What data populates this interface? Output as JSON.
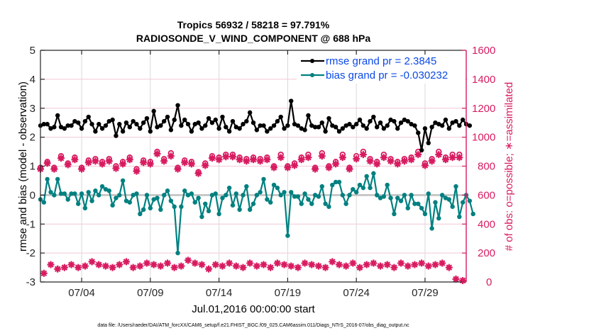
{
  "chart_data": {
    "type": "line",
    "title": "Tropics 56932 / 58218 = 97.791%",
    "subtitle": "RADIOSONDE_V_WIND_COMPONENT @ 688 hPa",
    "xlabel": "Jul.01,2016 00:00:00 start",
    "ylabel": "rmse and bias (model - observation)",
    "y2label": "# of obs: o=possible; ∗=assimilated",
    "footnote": "data file: /Users/raeder/DAI/ATM_forcXX/CAM6_setup/f.e21.FHIST_BGC.f09_025.CAM6assim.011/Diags_NTrS_2016-07/obs_diag_output.nc",
    "ylim": [
      -3,
      5
    ],
    "y2lim": [
      0,
      1600
    ],
    "xlim_days": [
      1,
      32
    ],
    "yticks": [
      "5",
      "4",
      "3",
      "2",
      "1",
      "0",
      "-1",
      "-2",
      "-3"
    ],
    "y2ticks": [
      "1600",
      "1400",
      "1200",
      "1000",
      "800",
      "600",
      "400",
      "200",
      "0"
    ],
    "xticks": [
      {
        "label": "07/04",
        "day": 4
      },
      {
        "label": "07/09",
        "day": 9
      },
      {
        "label": "07/14",
        "day": 14
      },
      {
        "label": "07/19",
        "day": 19
      },
      {
        "label": "07/24",
        "day": 24
      },
      {
        "label": "07/29",
        "day": 29
      }
    ],
    "grid": true,
    "zero_line": true,
    "legend_position": "top-right",
    "legend": [
      {
        "label": "rmse grand pr = 2.3845",
        "color": "#000000"
      },
      {
        "label": "bias grand pr = -0.030232",
        "color": "#008080"
      }
    ],
    "colors": {
      "rmse": "#000000",
      "bias": "#008080",
      "obs": "#d81b60",
      "legend_text": "#0b49e6",
      "zero_line": "#bfbfbf",
      "grid": "#f3c8d8"
    },
    "x_days_start": 1.0,
    "x_step_days": 0.25,
    "series": [
      {
        "name": "rmse",
        "axis": "left",
        "values": [
          2.4,
          2.45,
          2.45,
          2.3,
          2.35,
          2.75,
          2.35,
          2.3,
          2.4,
          2.4,
          2.55,
          2.5,
          2.3,
          2.55,
          2.7,
          2.45,
          2.2,
          2.45,
          2.3,
          2.4,
          2.55,
          2.6,
          2.05,
          2.45,
          2.2,
          2.5,
          2.35,
          2.55,
          2.45,
          2.3,
          2.5,
          2.65,
          2.2,
          2.9,
          2.35,
          2.4,
          2.55,
          2.7,
          2.25,
          2.6,
          3.1,
          2.4,
          2.6,
          2.45,
          2.2,
          2.45,
          2.5,
          2.3,
          2.4,
          2.65,
          2.5,
          2.6,
          2.3,
          2.7,
          2.35,
          2.2,
          2.55,
          2.35,
          2.3,
          2.45,
          2.55,
          2.85,
          2.5,
          2.25,
          2.4,
          2.4,
          2.2,
          2.3,
          2.4,
          2.55,
          2.7,
          2.3,
          2.4,
          3.25,
          2.45,
          2.4,
          2.3,
          2.25,
          2.75,
          2.4,
          2.35,
          2.35,
          2.5,
          2.2,
          2.65,
          2.4,
          2.35,
          2.2,
          2.3,
          2.4,
          2.45,
          2.35,
          2.45,
          2.6,
          2.4,
          2.3,
          2.55,
          2.7,
          2.35,
          2.5,
          2.3,
          2.4,
          2.6,
          2.55,
          2.3,
          2.5,
          2.6,
          2.55,
          2.45,
          2.4,
          2.15,
          1.55,
          2.3,
          1.8,
          2.35,
          2.5,
          2.45,
          2.4,
          2.6,
          2.3,
          2.5,
          2.55,
          2.4,
          2.6,
          2.45,
          2.4
        ]
      },
      {
        "name": "bias",
        "axis": "left",
        "values": [
          -0.15,
          -0.25,
          0.55,
          0.1,
          0.0,
          0.55,
          0.05,
          0.05,
          -0.15,
          0.05,
          0.05,
          -0.3,
          0.05,
          -0.45,
          0.1,
          -0.2,
          0.15,
          0.0,
          0.3,
          0.2,
          0.15,
          -0.35,
          -0.1,
          0.0,
          0.5,
          -0.2,
          -0.25,
          0.0,
          0.05,
          -0.65,
          -0.5,
          0.0,
          -0.45,
          -0.15,
          -0.1,
          -0.5,
          0.0,
          0.15,
          -0.2,
          -0.4,
          -2.0,
          -0.4,
          0.15,
          0.0,
          0.05,
          -0.25,
          -0.1,
          -0.75,
          -0.3,
          -0.55,
          0.0,
          0.05,
          -0.65,
          -0.1,
          0.0,
          0.25,
          -0.35,
          0.05,
          -0.5,
          0.0,
          0.3,
          -0.5,
          -0.3,
          0.0,
          0.1,
          0.55,
          -0.15,
          -0.25,
          0.35,
          0.25,
          0.0,
          0.1,
          -1.4,
          0.1,
          -0.05,
          -0.05,
          -0.3,
          0.05,
          -0.15,
          -0.3,
          0.0,
          -0.05,
          0.3,
          -0.3,
          -0.4,
          0.35,
          0.45,
          0.45,
          0.0,
          -0.3,
          0.0,
          0.2,
          0.1,
          0.35,
          0.25,
          0.65,
          0.25,
          0.75,
          0.0,
          -0.1,
          -0.05,
          0.35,
          -0.1,
          -0.65,
          -0.1,
          -0.2,
          0.0,
          -0.45,
          0.0,
          -0.3,
          -0.3,
          -0.45,
          -0.65,
          0.05,
          -1.15,
          -0.25,
          -0.8,
          0.0,
          -0.1,
          -0.15,
          -0.4,
          0.3,
          -0.75,
          -0.25,
          0.0,
          -0.2,
          -0.65
        ]
      },
      {
        "name": "obs_possible",
        "axis": "right",
        "values": [
          790,
          820,
          830,
          820,
          790,
          810,
          870,
          830,
          820,
          840,
          860,
          830,
          790,
          810,
          840,
          860,
          850,
          830,
          830,
          840,
          850,
          880,
          800,
          810,
          830,
          830,
          860,
          780,
          780,
          790,
          840,
          800,
          830,
          880,
          900,
          940,
          850,
          880,
          890,
          840,
          790,
          800,
          840,
          830,
          830,
          780,
          760,
          790,
          820,
          850,
          870,
          860,
          860,
          870,
          880,
          900,
          880,
          880,
          860,
          880,
          850,
          810,
          860,
          830,
          850,
          800,
          860,
          900,
          800,
          860,
          880,
          860,
          800,
          920,
          820,
          850,
          860,
          820,
          880,
          890,
          790,
          830,
          890,
          810,
          800,
          790,
          830,
          860,
          880,
          830,
          790,
          830,
          870,
          890,
          900,
          870,
          850,
          820,
          830,
          850,
          880,
          920,
          850,
          800,
          830,
          870,
          850,
          820,
          860,
          910,
          900,
          800,
          820,
          840,
          850,
          870,
          900,
          820,
          860,
          850,
          880,
          870,
          880,
          860
        ]
      },
      {
        "name": "obs_assimilated",
        "axis": "right",
        "values": [
          780,
          810,
          820,
          810,
          780,
          800,
          855,
          820,
          810,
          830,
          845,
          815,
          780,
          800,
          825,
          845,
          835,
          815,
          815,
          825,
          835,
          860,
          785,
          795,
          815,
          815,
          845,
          770,
          765,
          780,
          825,
          790,
          815,
          860,
          885,
          925,
          835,
          860,
          870,
          825,
          780,
          790,
          825,
          815,
          815,
          770,
          750,
          780,
          805,
          835,
          855,
          845,
          845,
          855,
          865,
          880,
          865,
          865,
          845,
          860,
          835,
          800,
          845,
          815,
          835,
          790,
          845,
          880,
          790,
          845,
          860,
          845,
          790,
          900,
          805,
          835,
          845,
          805,
          860,
          870,
          780,
          815,
          870,
          800,
          790,
          780,
          815,
          845,
          860,
          815,
          780,
          815,
          850,
          870,
          880,
          850,
          835,
          805,
          815,
          835,
          860,
          900,
          835,
          790,
          815,
          850,
          835,
          805,
          845,
          890,
          880,
          790,
          805,
          825,
          835,
          855,
          880,
          805,
          845,
          835,
          860,
          850,
          860,
          845
        ]
      },
      {
        "name": "obs_possible_00z",
        "axis": "right",
        "note": "low cluster of obs counts (alternating synoptic times)",
        "values": [
          110,
          60,
          20,
          120,
          40,
          90,
          10,
          100,
          50,
          120,
          30,
          100,
          20,
          110,
          40,
          140,
          170,
          120,
          50,
          110,
          30,
          100,
          60,
          120,
          40,
          140,
          30,
          100,
          60,
          110,
          40,
          130,
          50,
          120,
          20,
          110,
          60,
          130,
          40,
          100,
          50,
          110,
          70,
          150,
          30,
          130,
          50,
          120,
          20,
          90,
          60,
          120,
          30,
          110,
          40,
          130,
          50,
          110,
          20,
          100,
          40,
          130,
          60,
          110,
          30,
          120,
          20,
          100,
          40,
          130,
          50,
          120,
          30,
          110,
          60,
          100,
          40,
          130,
          20,
          120,
          50,
          110,
          30,
          100,
          60,
          140,
          40,
          120,
          30,
          110,
          50,
          130,
          20,
          100,
          40,
          120,
          30,
          130,
          60,
          110,
          40,
          120,
          20,
          100,
          50,
          130,
          30,
          110,
          40,
          120,
          60,
          130,
          20,
          110,
          30,
          120,
          40,
          130,
          50,
          100,
          40,
          20,
          0,
          10
        ]
      }
    ]
  }
}
